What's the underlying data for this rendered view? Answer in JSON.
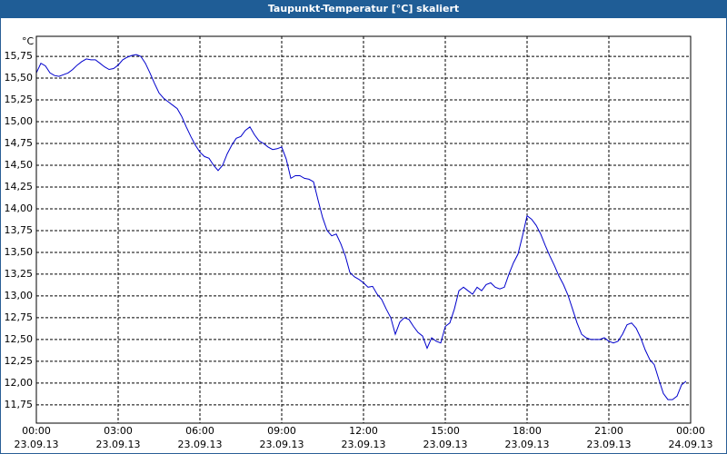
{
  "chart_data": {
    "type": "line",
    "title": "Taupunkt-Temperatur [°C] skaliert",
    "y_unit": "°C",
    "color": "#0000cc",
    "grid": true,
    "xlim": [
      0,
      1440
    ],
    "ylim": [
      11.54,
      15.98
    ],
    "xticks": [
      {
        "value": 0,
        "label": "00:00"
      },
      {
        "value": 180,
        "label": "03:00"
      },
      {
        "value": 360,
        "label": "06:00"
      },
      {
        "value": 540,
        "label": "09:00"
      },
      {
        "value": 720,
        "label": "12:00"
      },
      {
        "value": 900,
        "label": "15:00"
      },
      {
        "value": 1080,
        "label": "18:00"
      },
      {
        "value": 1260,
        "label": "21:00"
      },
      {
        "value": 1440,
        "label": "00:00"
      }
    ],
    "xtick_dates": [
      "23.09.13",
      "23.09.13",
      "23.09.13",
      "23.09.13",
      "23.09.13",
      "23.09.13",
      "23.09.13",
      "23.09.13",
      "24.09.13"
    ],
    "yticks": [
      {
        "value": 11.75,
        "label": "11,75"
      },
      {
        "value": 12,
        "label": "12,00"
      },
      {
        "value": 12.25,
        "label": "12,25"
      },
      {
        "value": 12.5,
        "label": "12,50"
      },
      {
        "value": 12.75,
        "label": "12,75"
      },
      {
        "value": 13,
        "label": "13,00"
      },
      {
        "value": 13.25,
        "label": "13,25"
      },
      {
        "value": 13.5,
        "label": "13,50"
      },
      {
        "value": 13.75,
        "label": "13,75"
      },
      {
        "value": 14,
        "label": "14,00"
      },
      {
        "value": 14.25,
        "label": "14,25"
      },
      {
        "value": 14.5,
        "label": "14,50"
      },
      {
        "value": 14.75,
        "label": "14,75"
      },
      {
        "value": 15,
        "label": "15,00"
      },
      {
        "value": 15.25,
        "label": "15,25"
      },
      {
        "value": 15.5,
        "label": "15,50"
      },
      {
        "value": 15.75,
        "label": "15,75"
      }
    ],
    "x": [
      0,
      10,
      20,
      30,
      40,
      50,
      60,
      70,
      80,
      90,
      100,
      110,
      120,
      130,
      140,
      150,
      160,
      170,
      180,
      190,
      200,
      210,
      220,
      230,
      240,
      250,
      260,
      270,
      280,
      290,
      300,
      310,
      320,
      330,
      340,
      350,
      360,
      370,
      380,
      390,
      400,
      410,
      420,
      430,
      440,
      450,
      460,
      470,
      480,
      490,
      500,
      510,
      520,
      530,
      540,
      550,
      560,
      570,
      580,
      590,
      600,
      610,
      620,
      630,
      640,
      650,
      660,
      670,
      680,
      690,
      700,
      710,
      720,
      730,
      740,
      750,
      760,
      770,
      780,
      790,
      800,
      810,
      820,
      830,
      840,
      850,
      860,
      870,
      880,
      890,
      900,
      910,
      920,
      930,
      940,
      950,
      960,
      970,
      980,
      990,
      1000,
      1010,
      1020,
      1030,
      1040,
      1050,
      1060,
      1070,
      1080,
      1090,
      1100,
      1110,
      1120,
      1130,
      1140,
      1150,
      1160,
      1170,
      1180,
      1190,
      1200,
      1210,
      1220,
      1230,
      1240,
      1250,
      1260,
      1270,
      1280,
      1290,
      1300,
      1310,
      1320,
      1330,
      1340,
      1350,
      1360,
      1370,
      1380,
      1390,
      1400,
      1410,
      1420,
      1430
    ],
    "values": [
      15.56,
      15.67,
      15.64,
      15.56,
      15.53,
      15.52,
      15.54,
      15.56,
      15.6,
      15.65,
      15.69,
      15.72,
      15.71,
      15.71,
      15.67,
      15.63,
      15.6,
      15.61,
      15.65,
      15.71,
      15.74,
      15.76,
      15.77,
      15.75,
      15.67,
      15.56,
      15.44,
      15.33,
      15.27,
      15.23,
      15.19,
      15.15,
      15.06,
      14.94,
      14.83,
      14.73,
      14.65,
      14.6,
      14.58,
      14.5,
      14.44,
      14.5,
      14.63,
      14.73,
      14.81,
      14.83,
      14.9,
      14.94,
      14.85,
      14.78,
      14.75,
      14.71,
      14.68,
      14.69,
      14.71,
      14.57,
      14.35,
      14.38,
      14.38,
      14.35,
      14.34,
      14.31,
      14.1,
      13.9,
      13.75,
      13.69,
      13.71,
      13.6,
      13.46,
      13.27,
      13.22,
      13.19,
      13.15,
      13.1,
      13.11,
      13.02,
      12.96,
      12.85,
      12.75,
      12.56,
      12.7,
      12.75,
      12.73,
      12.65,
      12.58,
      12.54,
      12.4,
      12.52,
      12.48,
      12.46,
      12.65,
      12.69,
      12.85,
      13.06,
      13.1,
      13.06,
      13.02,
      13.1,
      13.06,
      13.13,
      13.15,
      13.1,
      13.08,
      13.1,
      13.25,
      13.38,
      13.48,
      13.69,
      13.92,
      13.88,
      13.81,
      13.71,
      13.58,
      13.46,
      13.35,
      13.23,
      13.13,
      13.01,
      12.85,
      12.69,
      12.56,
      12.52,
      12.5,
      12.5,
      12.5,
      12.52,
      12.48,
      12.46,
      12.48,
      12.56,
      12.67,
      12.69,
      12.63,
      12.52,
      12.38,
      12.27,
      12.21,
      12.04,
      11.88,
      11.81,
      11.81,
      11.85,
      11.98,
      12.02
    ]
  }
}
